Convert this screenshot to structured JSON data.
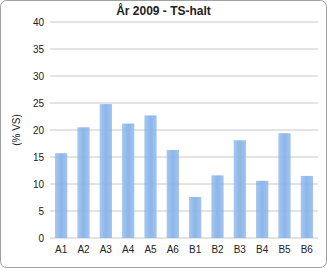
{
  "chart_data": {
    "type": "bar",
    "title": "År 2009 - TS-halt",
    "y_label": "(% VS)",
    "categories": [
      "A1",
      "A2",
      "A3",
      "A4",
      "A5",
      "A6",
      "B1",
      "B2",
      "B3",
      "B4",
      "B5",
      "B6"
    ],
    "values": [
      15.7,
      20.5,
      24.8,
      21.2,
      22.7,
      16.3,
      7.6,
      11.6,
      18.1,
      10.6,
      19.4,
      11.5
    ],
    "color": "#8cb6ea",
    "ylim": [
      0,
      40
    ],
    "yticks": [
      0,
      5,
      10,
      15,
      20,
      25,
      30,
      35,
      40
    ],
    "grid": true
  }
}
